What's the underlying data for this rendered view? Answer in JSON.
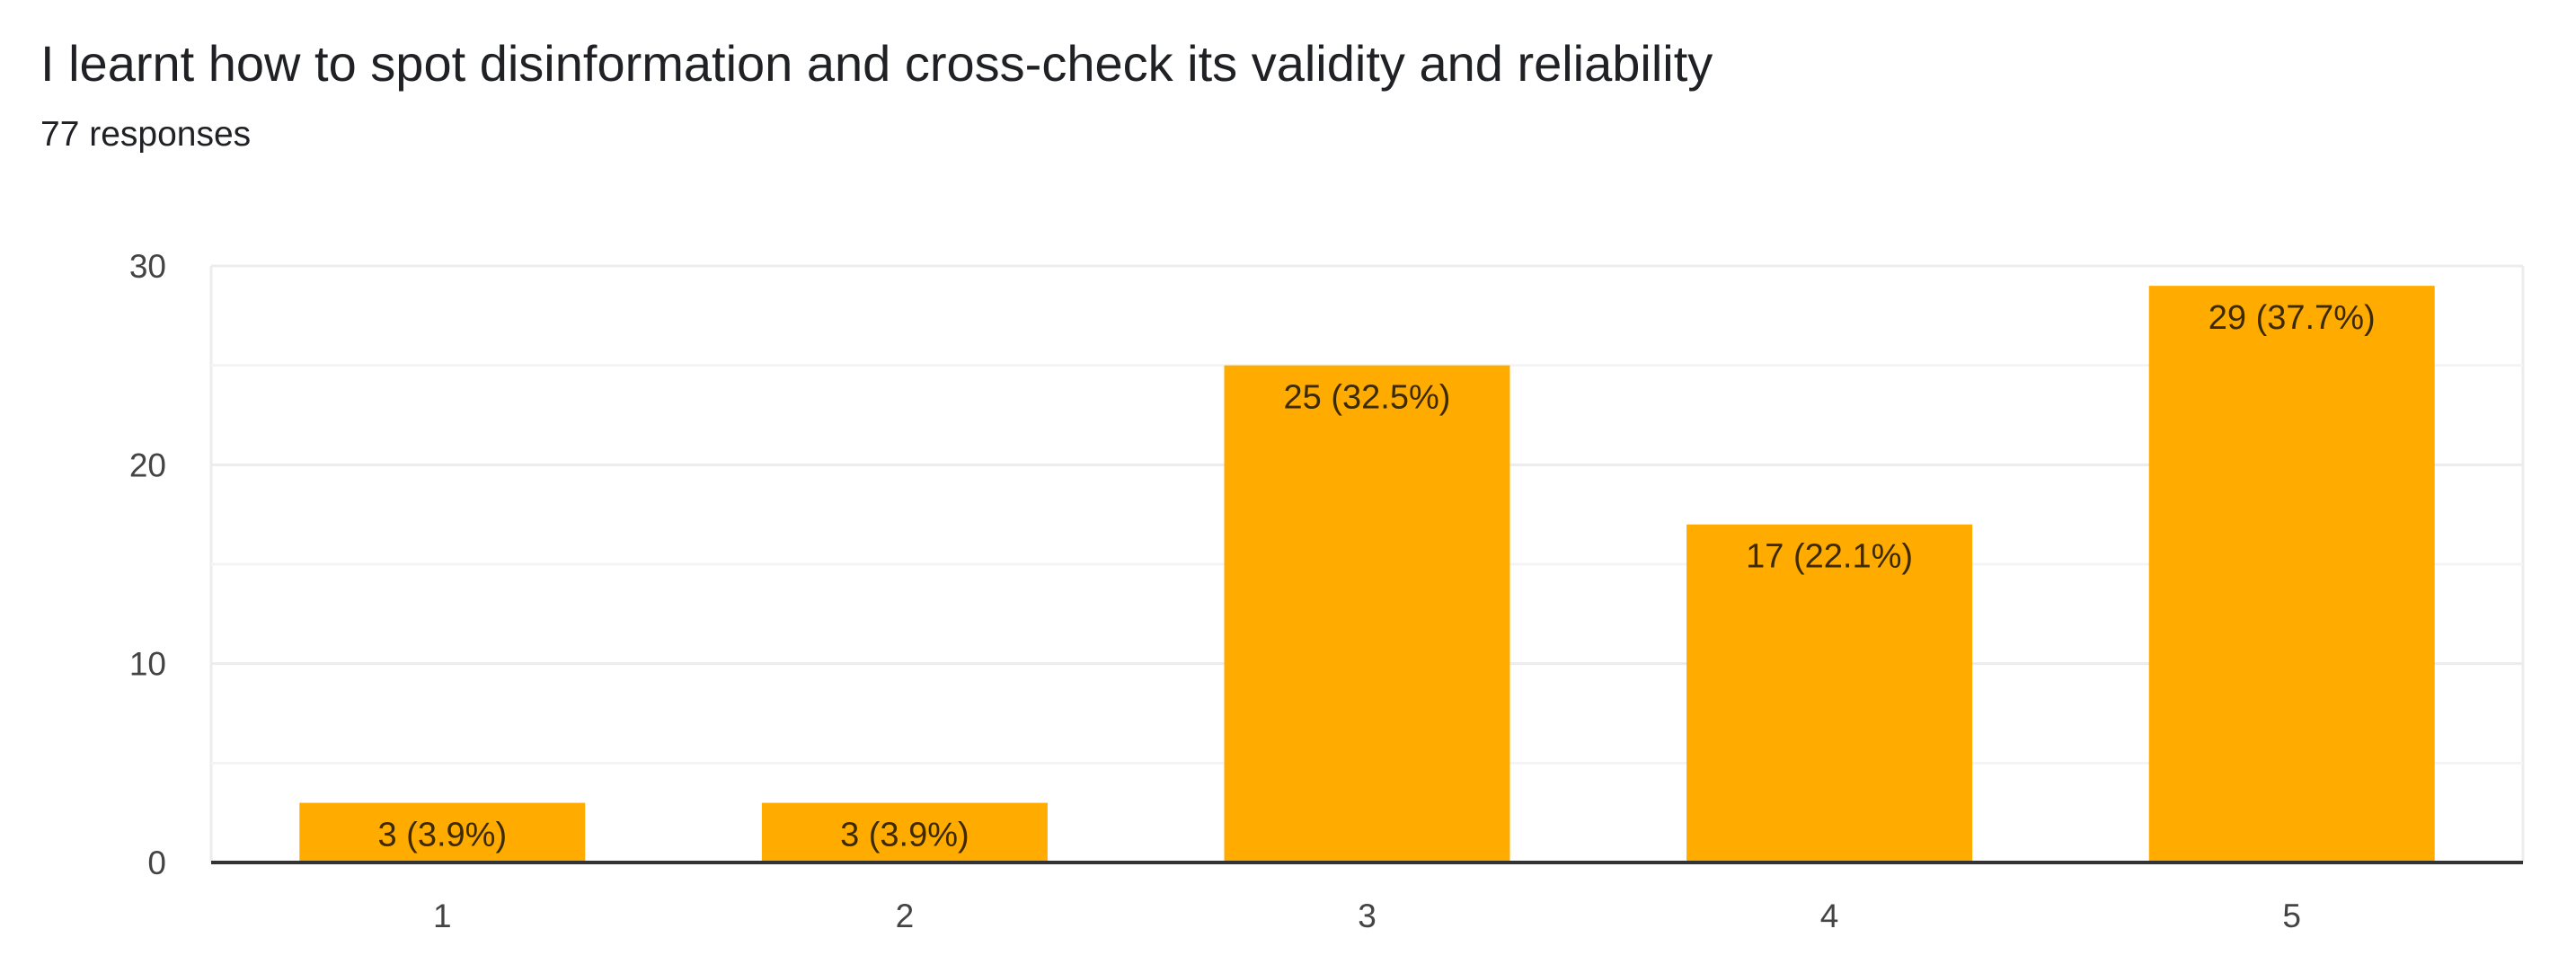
{
  "header": {
    "title": "I learnt how to spot disinformation and cross-check its validity and reliability",
    "responses": "77 responses"
  },
  "colors": {
    "bar": "#FFAB00",
    "grid": "#ececec",
    "axis": "#333333"
  },
  "chart_data": {
    "type": "bar",
    "title": "I learnt how to spot disinformation and cross-check its validity and reliability",
    "categories": [
      "1",
      "2",
      "3",
      "4",
      "5"
    ],
    "values": [
      3,
      3,
      25,
      17,
      29
    ],
    "data_labels": [
      "3 (3.9%)",
      "3 (3.9%)",
      "25 (32.5%)",
      "17 (22.1%)",
      "29 (37.7%)"
    ],
    "ylim": [
      0,
      30
    ],
    "yticks": [
      0,
      10,
      20,
      30
    ],
    "minor_gridlines": [
      5,
      15,
      25
    ],
    "xlabel": "",
    "ylabel": "",
    "grid": true,
    "legend": "none"
  }
}
